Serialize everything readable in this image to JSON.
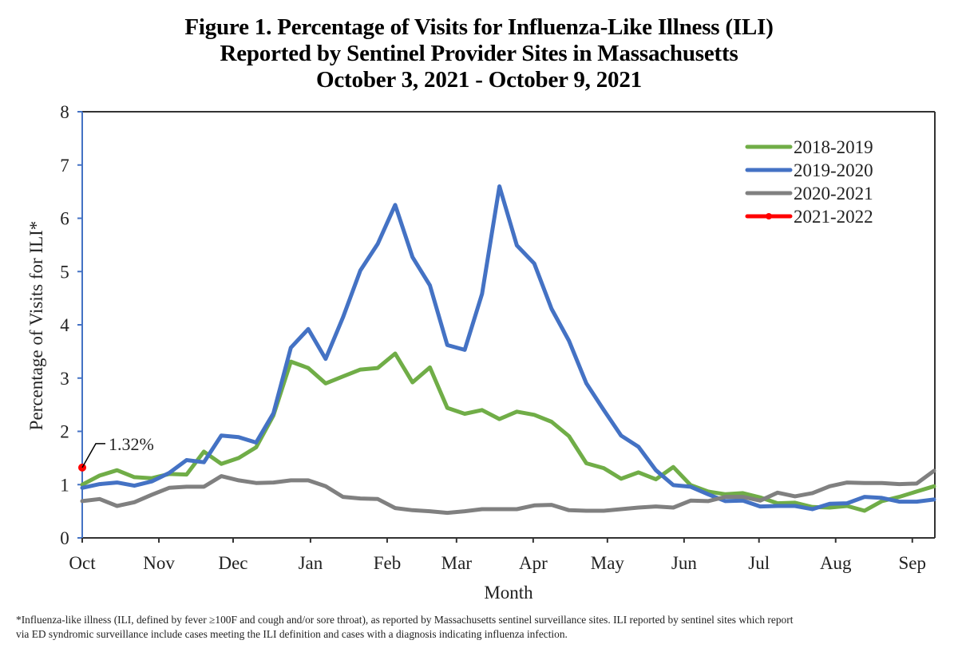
{
  "title": {
    "line1": "Figure 1. Percentage of Visits for Influenza-Like Illness (ILI)",
    "line2": "Reported by Sentinel Provider Sites in Massachusetts",
    "line3": "October 3, 2021 - October 9, 2021"
  },
  "footnote": {
    "line1": "*Influenza-like illness (ILI, defined by fever ≥100F and cough and/or sore throat), as reported by Massachusetts sentinel surveillance sites. ILI reported by sentinel sites which report",
    "line2": "via ED syndromic surveillance include cases meeting the ILI definition and cases with a diagnosis indicating influenza infection."
  },
  "chart_data": {
    "type": "line",
    "title": "Figure 1. Percentage of Visits for Influenza-Like Illness (ILI) Reported by Sentinel Provider Sites in Massachusetts, October 3, 2021 - October 9, 2021",
    "xlabel": "Month",
    "ylabel": "Percentage of Visits for ILI*",
    "ylim": [
      0,
      8
    ],
    "yticks": [
      "0",
      "1",
      "2",
      "3",
      "4",
      "5",
      "6",
      "7",
      "8"
    ],
    "x_unit": "week of season (0 = first week of October)",
    "x_range": [
      0,
      49
    ],
    "month_ticks": [
      {
        "label": "Oct",
        "week": 0
      },
      {
        "label": "Nov",
        "week": 4.41
      },
      {
        "label": "Dec",
        "week": 8.68
      },
      {
        "label": "Jan",
        "week": 13.13
      },
      {
        "label": "Feb",
        "week": 17.54
      },
      {
        "label": "Mar",
        "week": 21.53
      },
      {
        "label": "Apr",
        "week": 25.94
      },
      {
        "label": "May",
        "week": 30.21
      },
      {
        "label": "Jun",
        "week": 34.62
      },
      {
        "label": "Jul",
        "week": 38.93
      },
      {
        "label": "Aug",
        "week": 43.34
      },
      {
        "label": "Sep",
        "week": 47.75
      }
    ],
    "grid": false,
    "legend_position": "top-right",
    "series": [
      {
        "name": "2018-2019",
        "color": "#70ad47",
        "values": [
          1.0,
          1.17,
          1.27,
          1.14,
          1.12,
          1.2,
          1.19,
          1.62,
          1.39,
          1.5,
          1.7,
          2.3,
          3.31,
          3.19,
          2.9,
          3.03,
          3.16,
          3.19,
          3.46,
          2.92,
          3.2,
          2.44,
          2.33,
          2.4,
          2.23,
          2.37,
          2.31,
          2.18,
          1.91,
          1.4,
          1.31,
          1.11,
          1.23,
          1.1,
          1.33,
          0.99,
          0.87,
          0.82,
          0.84,
          0.76,
          0.65,
          0.66,
          0.58,
          0.57,
          0.6,
          0.51,
          0.69,
          0.77,
          0.87,
          0.97
        ]
      },
      {
        "name": "2019-2020",
        "color": "#4472c4",
        "values": [
          0.94,
          1.01,
          1.04,
          0.98,
          1.06,
          1.22,
          1.46,
          1.42,
          1.92,
          1.89,
          1.79,
          2.34,
          3.57,
          3.92,
          3.36,
          4.14,
          5.02,
          5.52,
          6.25,
          5.27,
          4.74,
          3.62,
          3.53,
          4.58,
          6.6,
          5.49,
          5.15,
          4.3,
          3.7,
          2.9,
          2.4,
          1.92,
          1.71,
          1.27,
          0.99,
          0.96,
          0.82,
          0.69,
          0.7,
          0.59,
          0.6,
          0.6,
          0.54,
          0.64,
          0.65,
          0.77,
          0.75,
          0.68,
          0.68,
          0.72
        ]
      },
      {
        "name": "2020-2021",
        "color": "#808080",
        "values": [
          0.69,
          0.73,
          0.6,
          0.67,
          0.81,
          0.94,
          0.96,
          0.96,
          1.16,
          1.08,
          1.03,
          1.04,
          1.08,
          1.08,
          0.97,
          0.77,
          0.74,
          0.73,
          0.56,
          0.52,
          0.5,
          0.47,
          0.5,
          0.54,
          0.54,
          0.54,
          0.61,
          0.62,
          0.52,
          0.51,
          0.51,
          0.54,
          0.57,
          0.59,
          0.57,
          0.7,
          0.69,
          0.77,
          0.77,
          0.7,
          0.85,
          0.78,
          0.84,
          0.97,
          1.04,
          1.03,
          1.03,
          1.01,
          1.02,
          1.26
        ]
      },
      {
        "name": "2021-2022",
        "color": "#ff0000",
        "marker": true,
        "values": [
          1.32
        ]
      }
    ],
    "annotations": [
      {
        "text": "1.32%",
        "series": "2021-2022",
        "week": 0,
        "value": 1.32
      }
    ]
  }
}
